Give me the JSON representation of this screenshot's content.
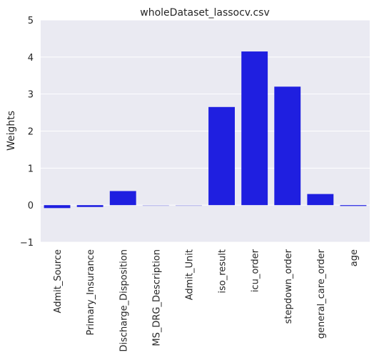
{
  "chart_data": {
    "type": "bar",
    "title": "wholeDataset_lassocv.csv",
    "xlabel": "",
    "ylabel": "Weights",
    "ylim": [
      -1,
      5
    ],
    "yticks": [
      -1,
      0,
      1,
      2,
      3,
      4,
      5
    ],
    "grid": true,
    "categories": [
      "Admit_Source",
      "Primary_Insurance",
      "Discharge_Disposition",
      "MS_DRG_Description",
      "Admit_Unit",
      "iso_result",
      "icu_order",
      "stepdown_order",
      "general_care_order",
      "age"
    ],
    "values": [
      -0.08,
      -0.05,
      0.38,
      -0.01,
      -0.01,
      2.65,
      4.15,
      3.2,
      0.3,
      -0.02
    ],
    "colors": {
      "background": "#eaeaf2",
      "grid": "#ffffff",
      "bar_primary": "#1f1fe0",
      "bar_faint": "#b8b8ee"
    }
  }
}
